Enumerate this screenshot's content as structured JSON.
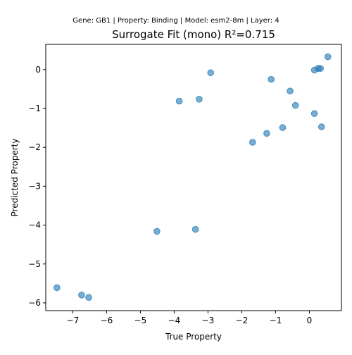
{
  "suptitle": "Gene: GB1 | Property: Binding | Model: esm2-8m | Layer: 4",
  "chart_data": {
    "type": "scatter",
    "title": "Surrogate Fit (mono) R²=0.715",
    "xlabel": "True Property",
    "ylabel": "Predicted Property",
    "xlim": [
      -7.8,
      0.95
    ],
    "ylim": [
      -6.2,
      0.65
    ],
    "xticks": [
      -7,
      -6,
      -5,
      -4,
      -3,
      -2,
      -1,
      0
    ],
    "yticks": [
      0,
      -1,
      -2,
      -3,
      -4,
      -5,
      -6
    ],
    "grid": false,
    "marker_color": "#1f77b4",
    "points": [
      {
        "x": -7.47,
        "y": -5.61
      },
      {
        "x": -6.74,
        "y": -5.8
      },
      {
        "x": -6.53,
        "y": -5.86
      },
      {
        "x": -4.51,
        "y": -4.16
      },
      {
        "x": -3.37,
        "y": -4.11
      },
      {
        "x": -3.85,
        "y": -0.81
      },
      {
        "x": -3.26,
        "y": -0.76
      },
      {
        "x": -2.92,
        "y": -0.08
      },
      {
        "x": -1.68,
        "y": -1.87
      },
      {
        "x": -1.26,
        "y": -1.64
      },
      {
        "x": -1.13,
        "y": -0.25
      },
      {
        "x": -0.79,
        "y": -1.49
      },
      {
        "x": -0.57,
        "y": -0.55
      },
      {
        "x": -0.41,
        "y": -0.92
      },
      {
        "x": 0.15,
        "y": -1.13
      },
      {
        "x": 0.15,
        "y": -0.01
      },
      {
        "x": 0.26,
        "y": 0.03
      },
      {
        "x": 0.33,
        "y": 0.03
      },
      {
        "x": 0.36,
        "y": -1.47
      },
      {
        "x": 0.55,
        "y": 0.33
      }
    ]
  }
}
